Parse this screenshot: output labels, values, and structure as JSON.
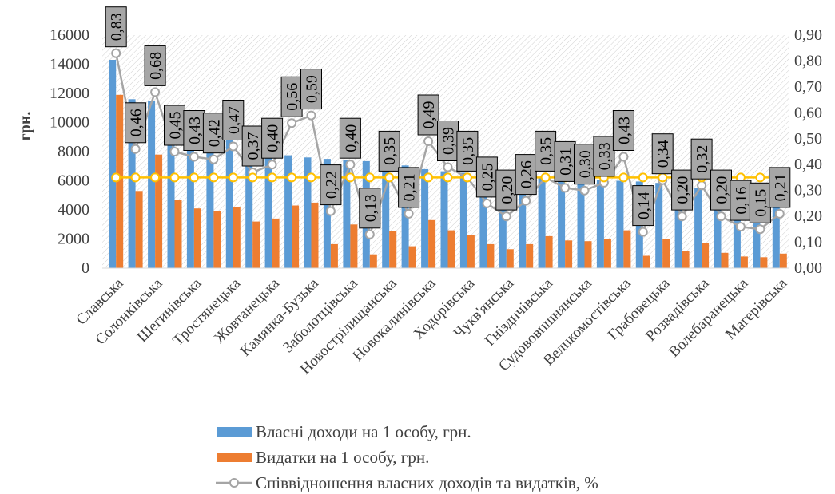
{
  "chart_data": {
    "type": "bar",
    "categories": [
      "Славська",
      "",
      "Солонківська",
      "",
      "Шегинівська",
      "",
      "Тростянецька",
      "",
      "Жовтанецька",
      "",
      "Камянка-Бузька",
      "",
      "Заболотцівська",
      "",
      "Новострілищанська",
      "",
      "Новокалинівська",
      "",
      "Ходорівська",
      "",
      "Чукв'янська",
      "",
      "Гніздичівська",
      "",
      "Судововишнянська",
      "",
      "Великомостівська",
      "",
      "Грабовецька",
      "",
      "Розвадівська",
      "",
      "Волебаранецька",
      "",
      "Магерівська"
    ],
    "ylabel": "грн.",
    "ylim": [
      0,
      16000
    ],
    "y2lim": [
      0,
      0.9
    ],
    "y_ticks": [
      "0",
      "2000",
      "4000",
      "6000",
      "8000",
      "10000",
      "12000",
      "14000",
      "16000"
    ],
    "y2_ticks": [
      "0,00",
      "0,10",
      "0,20",
      "0,30",
      "0,40",
      "0,50",
      "0,60",
      "0,70",
      "0,80",
      "0,90"
    ],
    "grid": false,
    "legend": "bottom",
    "series": [
      {
        "name": "Власні доходи на 1 особу, грн.",
        "type": "bar",
        "axis": "left",
        "color": "#5b9bd5",
        "values": [
          14300,
          11600,
          11450,
          10500,
          9500,
          9300,
          9000,
          8700,
          8500,
          7750,
          7600,
          7500,
          7450,
          7350,
          7250,
          7050,
          6800,
          6650,
          6550,
          6500,
          6400,
          6300,
          6250,
          6150,
          6100,
          6050,
          6000,
          5950,
          5850,
          5700,
          5500,
          5300,
          5100,
          4900,
          4800
        ]
      },
      {
        "name": "Видатки на 1 особу, грн.",
        "type": "bar",
        "axis": "left",
        "color": "#ed7d31",
        "values": [
          11900,
          5300,
          7800,
          4700,
          4100,
          3900,
          4200,
          3200,
          3400,
          4300,
          4500,
          1650,
          3000,
          950,
          2550,
          1500,
          3300,
          2600,
          2300,
          1650,
          1300,
          1650,
          2200,
          1900,
          1850,
          2000,
          2600,
          850,
          2000,
          1150,
          1750,
          1050,
          800,
          750,
          1000
        ]
      },
      {
        "name": "Співвідношення власних доходів та видатків, %",
        "type": "line",
        "axis": "right",
        "color": "#a5a5a5",
        "marker": "circle",
        "values": [
          0.83,
          0.46,
          0.68,
          0.45,
          0.43,
          0.42,
          0.47,
          0.37,
          0.4,
          0.56,
          0.59,
          0.22,
          0.4,
          0.13,
          0.35,
          0.21,
          0.49,
          0.39,
          0.35,
          0.25,
          0.2,
          0.26,
          0.35,
          0.31,
          0.3,
          0.33,
          0.43,
          0.14,
          0.34,
          0.2,
          0.32,
          0.2,
          0.16,
          0.15,
          0.21
        ],
        "data_labels": [
          "0,83",
          "0,46",
          "0,68",
          "0,45",
          "0,43",
          "0,42",
          "0,47",
          "0,37",
          "0,40",
          "0,56",
          "0,59",
          "0,22",
          "0,40",
          "0,13",
          "0,35",
          "0,21",
          "0,49",
          "0,39",
          "0,35",
          "0,25",
          "0,20",
          "0,26",
          "0,35",
          "0,31",
          "0,30",
          "0,33",
          "0,43",
          "0,14",
          "0,34",
          "0,20",
          "0,32",
          "0,20",
          "0,16",
          "0,15",
          "0,21"
        ]
      },
      {
        "type": "line",
        "axis": "right",
        "color": "#ffc000",
        "marker": "circle",
        "values": [
          0.35,
          0.35,
          0.35,
          0.35,
          0.35,
          0.35,
          0.35,
          0.35,
          0.35,
          0.35,
          0.35,
          0.35,
          0.35,
          0.35,
          0.35,
          0.35,
          0.35,
          0.35,
          0.35,
          0.35,
          0.35,
          0.35,
          0.35,
          0.35,
          0.35,
          0.35,
          0.35,
          0.35,
          0.35,
          0.35,
          0.35,
          0.35,
          0.35,
          0.35,
          0.35
        ]
      }
    ]
  }
}
